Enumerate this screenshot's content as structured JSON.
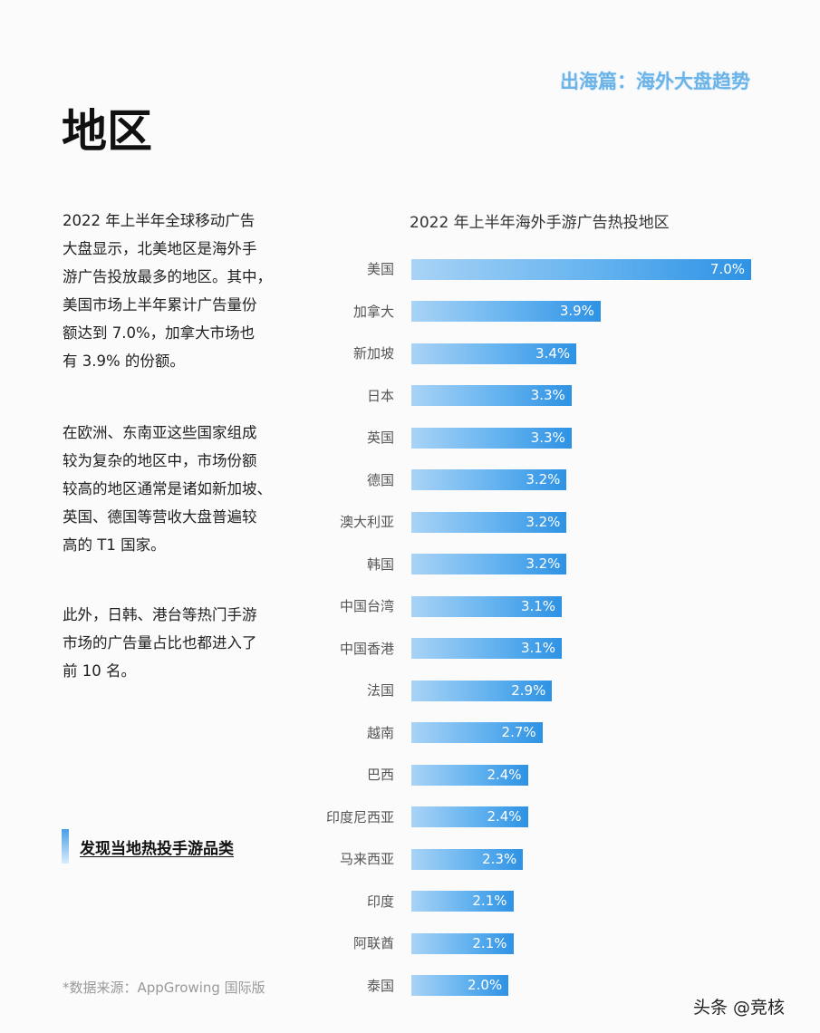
{
  "header": {
    "section_tag": "出海篇：海外大盘趋势",
    "title": "地区"
  },
  "paragraphs": [
    [
      "2022 年上半年全球移动广告",
      "大盘显示，北美地区是海外手",
      "游广告投放最多的地区。其中，",
      "美国市场上半年累计广告量份",
      "额达到 7.0%，加拿大市场也",
      "有 3.9% 的份额。"
    ],
    [
      "在欧洲、东南亚这些国家组成",
      "较为复杂的地区中，市场份额",
      "较高的地区通常是诸如新加坡、",
      "英国、德国等营收大盘普遍较",
      "高的 T1 国家。"
    ],
    [
      "此外，日韩、港台等热门手游",
      "市场的广告量占比也都进入了",
      "前 10 名。"
    ]
  ],
  "link": {
    "label": "发现当地热投手游品类"
  },
  "source": "*数据来源：AppGrowing 国际版",
  "watermark": "头条 @竞核",
  "colors": {
    "bar_start": "#a9d3f6",
    "bar_end": "#2e92e4",
    "section_tag": "#6cb4e8"
  },
  "chart_data": {
    "type": "bar",
    "orientation": "horizontal",
    "title": "2022 年上半年海外手游广告热投地区",
    "categories": [
      "美国",
      "加拿大",
      "新加坡",
      "日本",
      "英国",
      "德国",
      "澳大利亚",
      "韩国",
      "中国台湾",
      "中国香港",
      "法国",
      "越南",
      "巴西",
      "印度尼西亚",
      "马来西亚",
      "印度",
      "阿联酋",
      "泰国"
    ],
    "values": [
      7.0,
      3.9,
      3.4,
      3.3,
      3.3,
      3.2,
      3.2,
      3.2,
      3.1,
      3.1,
      2.9,
      2.7,
      2.4,
      2.4,
      2.3,
      2.1,
      2.1,
      2.0
    ],
    "data_labels": [
      "7.0%",
      "3.9%",
      "3.4%",
      "3.3%",
      "3.3%",
      "3.2%",
      "3.2%",
      "3.2%",
      "3.1%",
      "3.1%",
      "2.9%",
      "2.7%",
      "2.4%",
      "2.4%",
      "2.3%",
      "2.1%",
      "2.1%",
      "2.0%"
    ],
    "unit": "%",
    "grid": false
  }
}
